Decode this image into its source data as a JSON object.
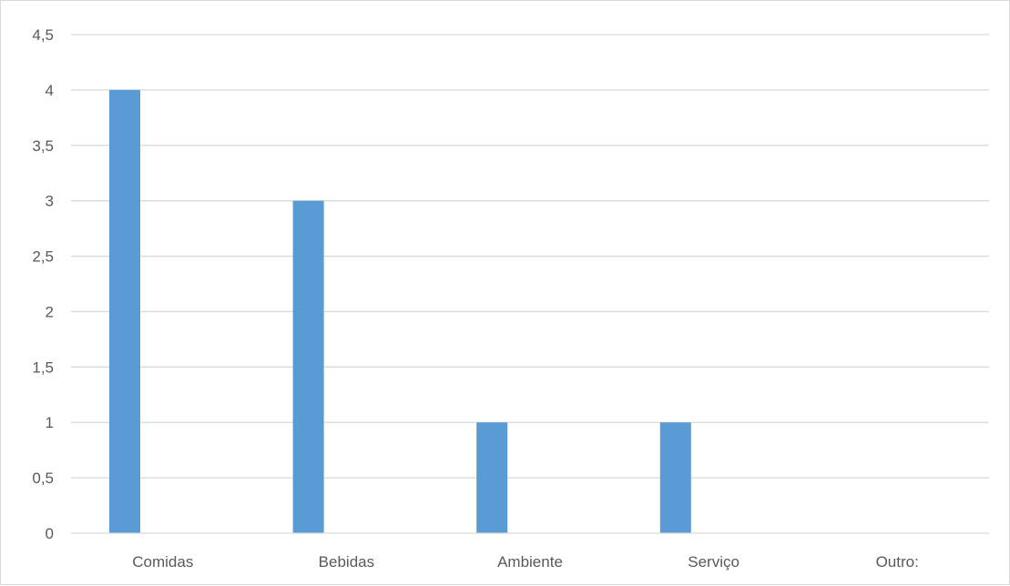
{
  "colors": {
    "bar": "#5b9bd5",
    "gridline": "#d9d9d9",
    "axis_line": "#d9d9d9",
    "text": "#595959"
  },
  "chart_data": {
    "type": "bar",
    "categories": [
      "Comidas",
      "Bebidas",
      "Ambiente",
      "Serviço",
      "Outro:"
    ],
    "values": [
      4,
      3,
      1,
      1,
      0
    ],
    "ylim": [
      0,
      4.5
    ],
    "y_ticks": [
      0,
      0.5,
      1,
      1.5,
      2,
      2.5,
      3,
      3.5,
      4,
      4.5
    ],
    "y_tick_labels": [
      "0",
      "0,5",
      "1",
      "1,5",
      "2",
      "2,5",
      "3",
      "3,5",
      "4",
      "4,5"
    ],
    "grid": true,
    "legend": "none"
  }
}
